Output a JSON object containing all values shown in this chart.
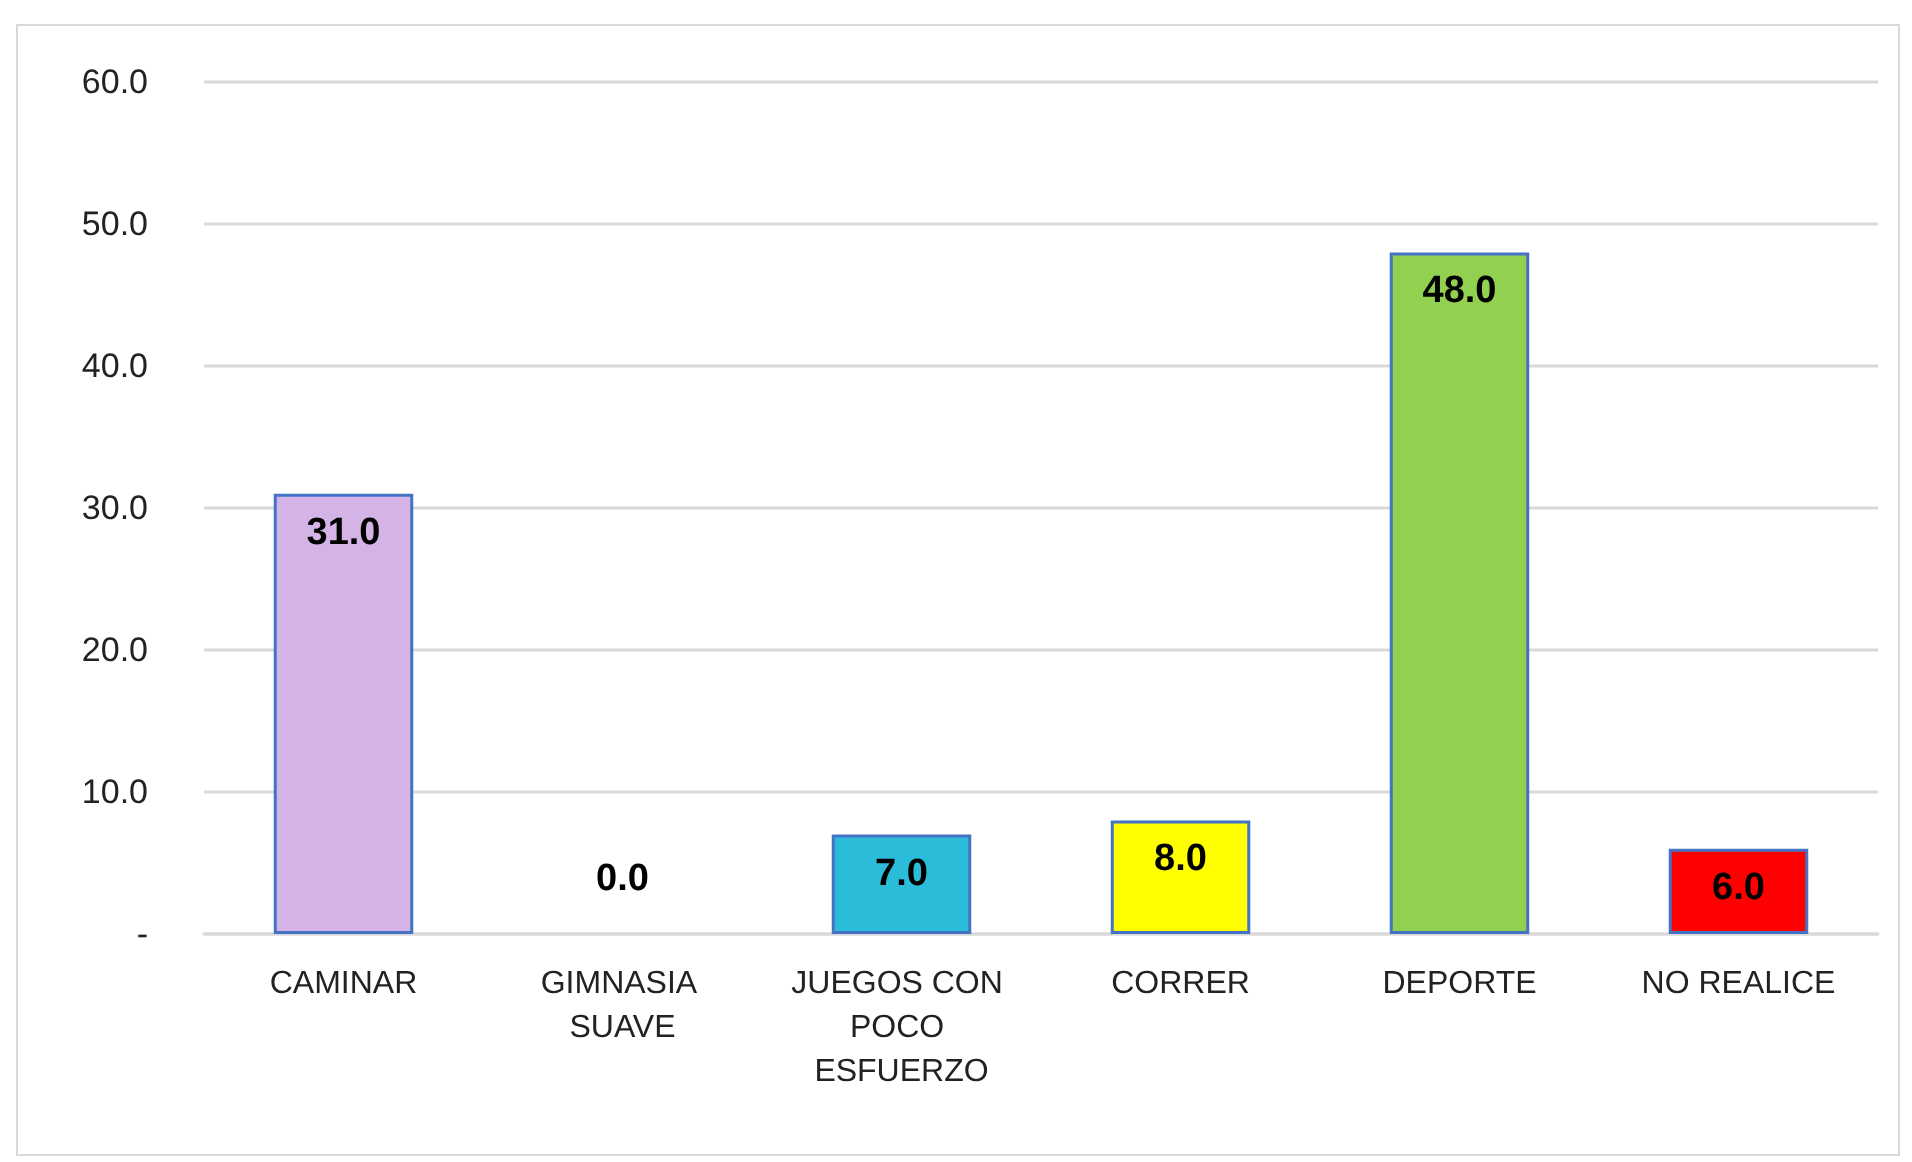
{
  "chart_data": {
    "type": "bar",
    "categories": [
      "CAMINAR",
      "GIMNASIA SUAVE",
      "JUEGOS CON POCO ESFUERZO",
      "CORRER",
      "DEPORTE",
      "NO REALICE"
    ],
    "values": [
      31,
      0,
      7,
      8,
      48,
      6
    ],
    "colors": [
      "#d4b4e6",
      null,
      "#2bbcda",
      "#ffff00",
      "#92d050",
      "#ff0000"
    ],
    "value_labels": [
      "31.0",
      "0.0",
      "7.0",
      "8.0",
      "48.0",
      "6.0"
    ],
    "ylim": [
      0,
      60
    ],
    "yticks": [
      {
        "value": 0,
        "label": "-"
      },
      {
        "value": 10,
        "label": "10.0"
      },
      {
        "value": 20,
        "label": "20.0"
      },
      {
        "value": 30,
        "label": "30.0"
      },
      {
        "value": 40,
        "label": "40.0"
      },
      {
        "value": 50,
        "label": "50.0"
      },
      {
        "value": 60,
        "label": "60.0"
      }
    ],
    "grid": "y"
  }
}
